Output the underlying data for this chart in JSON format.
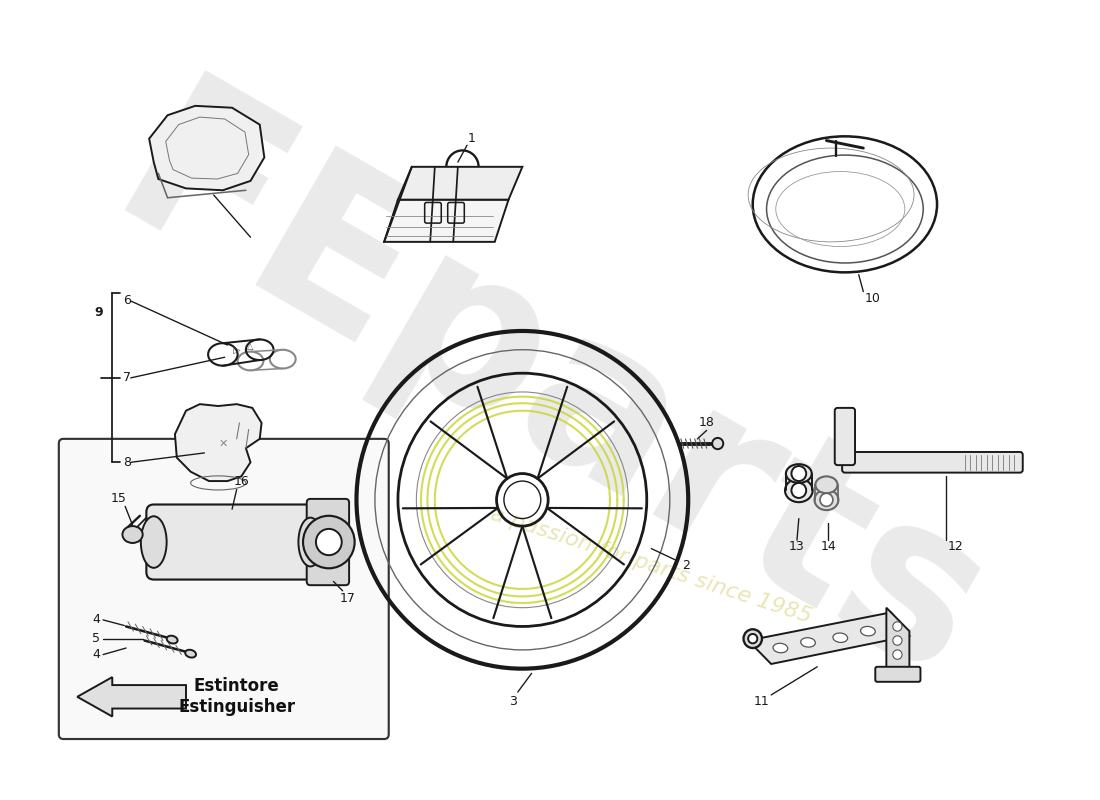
{
  "bg_color": "#ffffff",
  "lc": "#1a1a1a",
  "lw": 1.4,
  "watermark_text": "a passion for parts since 1985",
  "watermark_color": "#d4cc6a",
  "watermark_alpha": 0.5,
  "brand_text": "FEparts",
  "brand_color": "#bbbbbb",
  "brand_alpha": 0.3,
  "figsize": [
    11.0,
    8.0
  ],
  "dpi": 100,
  "xlim": [
    0,
    1100
  ],
  "ylim": [
    0,
    800
  ]
}
